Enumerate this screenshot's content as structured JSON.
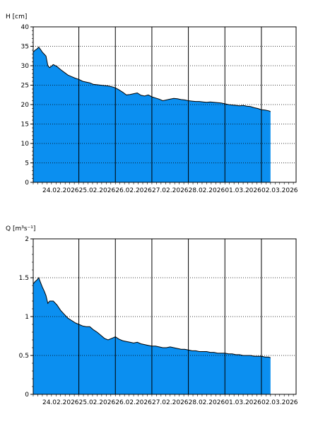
{
  "colors": {
    "fill": "#0b8ff0",
    "edge": "#000000",
    "grid": "#000000",
    "background": "#ffffff"
  },
  "chart_data": [
    {
      "type": "area",
      "ylabel": "H [cm]",
      "ylim": [
        0,
        40
      ],
      "yticks": [
        0,
        5,
        10,
        15,
        20,
        25,
        30,
        35,
        40
      ],
      "ytick_labels": [
        "0",
        "5",
        "10",
        "15",
        "20",
        "25",
        "30",
        "35",
        "40"
      ],
      "xlim": [
        -0.25,
        6.95
      ],
      "xtick_labels": [
        "24.02.2026",
        "25.02.2026",
        "26.02.2026",
        "27.02.2026",
        "28.02.2026",
        "01.03.2026",
        "02.03.2026"
      ],
      "day_lines": [
        1,
        2,
        3,
        4,
        5,
        6
      ],
      "grid": "horizontal-dotted",
      "series_x": [
        -0.25,
        -0.2,
        -0.15,
        -0.1,
        -0.05,
        0.0,
        0.05,
        0.1,
        0.15,
        0.2,
        0.3,
        0.4,
        0.5,
        0.6,
        0.7,
        0.8,
        0.9,
        1.0,
        1.1,
        1.2,
        1.3,
        1.4,
        1.5,
        1.6,
        1.7,
        1.8,
        1.9,
        2.0,
        2.1,
        2.2,
        2.3,
        2.4,
        2.5,
        2.6,
        2.7,
        2.8,
        2.9,
        3.0,
        3.1,
        3.2,
        3.3,
        3.4,
        3.5,
        3.6,
        3.7,
        3.8,
        3.9,
        4.0,
        4.1,
        4.2,
        4.3,
        4.4,
        4.5,
        4.6,
        4.7,
        4.8,
        4.9,
        5.0,
        5.1,
        5.2,
        5.3,
        5.4,
        5.5,
        5.6,
        5.7,
        5.8,
        5.9,
        6.0,
        6.1,
        6.2,
        6.25
      ],
      "series_y": [
        33.5,
        34.0,
        34.3,
        34.8,
        34.2,
        33.5,
        33.0,
        32.5,
        30.0,
        29.5,
        30.3,
        29.8,
        29.0,
        28.3,
        27.6,
        27.2,
        26.8,
        26.5,
        26.0,
        25.8,
        25.6,
        25.2,
        25.1,
        25.0,
        24.9,
        24.8,
        24.6,
        24.3,
        23.8,
        23.2,
        22.5,
        22.6,
        22.8,
        23.0,
        22.4,
        22.2,
        22.5,
        22.0,
        21.7,
        21.4,
        21.0,
        21.2,
        21.4,
        21.6,
        21.5,
        21.3,
        21.2,
        21.0,
        20.9,
        20.8,
        20.8,
        20.7,
        20.6,
        20.7,
        20.6,
        20.5,
        20.4,
        20.2,
        20.0,
        19.9,
        19.8,
        19.7,
        19.8,
        19.6,
        19.5,
        19.2,
        19.0,
        18.7,
        18.6,
        18.4,
        18.2
      ]
    },
    {
      "type": "area",
      "ylabel": "Q [m³s⁻¹]",
      "ylim": [
        0,
        2
      ],
      "yticks": [
        0,
        0.5,
        1,
        1.5,
        2
      ],
      "ytick_labels": [
        "0",
        "0.5",
        "1",
        "1.5",
        "2"
      ],
      "xlim": [
        -0.25,
        6.95
      ],
      "xtick_labels": [
        "24.02.2026",
        "25.02.2026",
        "26.02.2026",
        "27.02.2026",
        "28.02.2026",
        "01.03.2026",
        "02.03.2026"
      ],
      "day_lines": [
        1,
        2,
        3,
        4,
        5,
        6
      ],
      "grid": "horizontal-dotted",
      "series_x": [
        -0.25,
        -0.2,
        -0.15,
        -0.1,
        -0.05,
        0.0,
        0.05,
        0.1,
        0.15,
        0.2,
        0.3,
        0.4,
        0.5,
        0.6,
        0.7,
        0.8,
        0.9,
        1.0,
        1.1,
        1.2,
        1.3,
        1.4,
        1.5,
        1.6,
        1.7,
        1.8,
        1.9,
        2.0,
        2.1,
        2.2,
        2.3,
        2.4,
        2.5,
        2.6,
        2.7,
        2.8,
        2.9,
        3.0,
        3.1,
        3.2,
        3.3,
        3.4,
        3.5,
        3.6,
        3.7,
        3.8,
        3.9,
        4.0,
        4.1,
        4.2,
        4.3,
        4.4,
        4.5,
        4.6,
        4.7,
        4.8,
        4.9,
        5.0,
        5.1,
        5.2,
        5.3,
        5.4,
        5.5,
        5.6,
        5.7,
        5.8,
        5.9,
        6.0,
        6.1,
        6.2,
        6.25
      ],
      "series_y": [
        1.42,
        1.45,
        1.47,
        1.5,
        1.44,
        1.38,
        1.33,
        1.27,
        1.17,
        1.2,
        1.2,
        1.15,
        1.08,
        1.03,
        0.98,
        0.95,
        0.92,
        0.9,
        0.88,
        0.87,
        0.87,
        0.83,
        0.8,
        0.76,
        0.72,
        0.7,
        0.72,
        0.74,
        0.71,
        0.69,
        0.68,
        0.67,
        0.66,
        0.67,
        0.65,
        0.64,
        0.63,
        0.62,
        0.62,
        0.61,
        0.6,
        0.6,
        0.61,
        0.6,
        0.59,
        0.58,
        0.58,
        0.57,
        0.56,
        0.56,
        0.55,
        0.55,
        0.55,
        0.54,
        0.54,
        0.53,
        0.53,
        0.53,
        0.52,
        0.52,
        0.51,
        0.51,
        0.5,
        0.5,
        0.5,
        0.49,
        0.49,
        0.49,
        0.48,
        0.48,
        0.47
      ]
    }
  ]
}
